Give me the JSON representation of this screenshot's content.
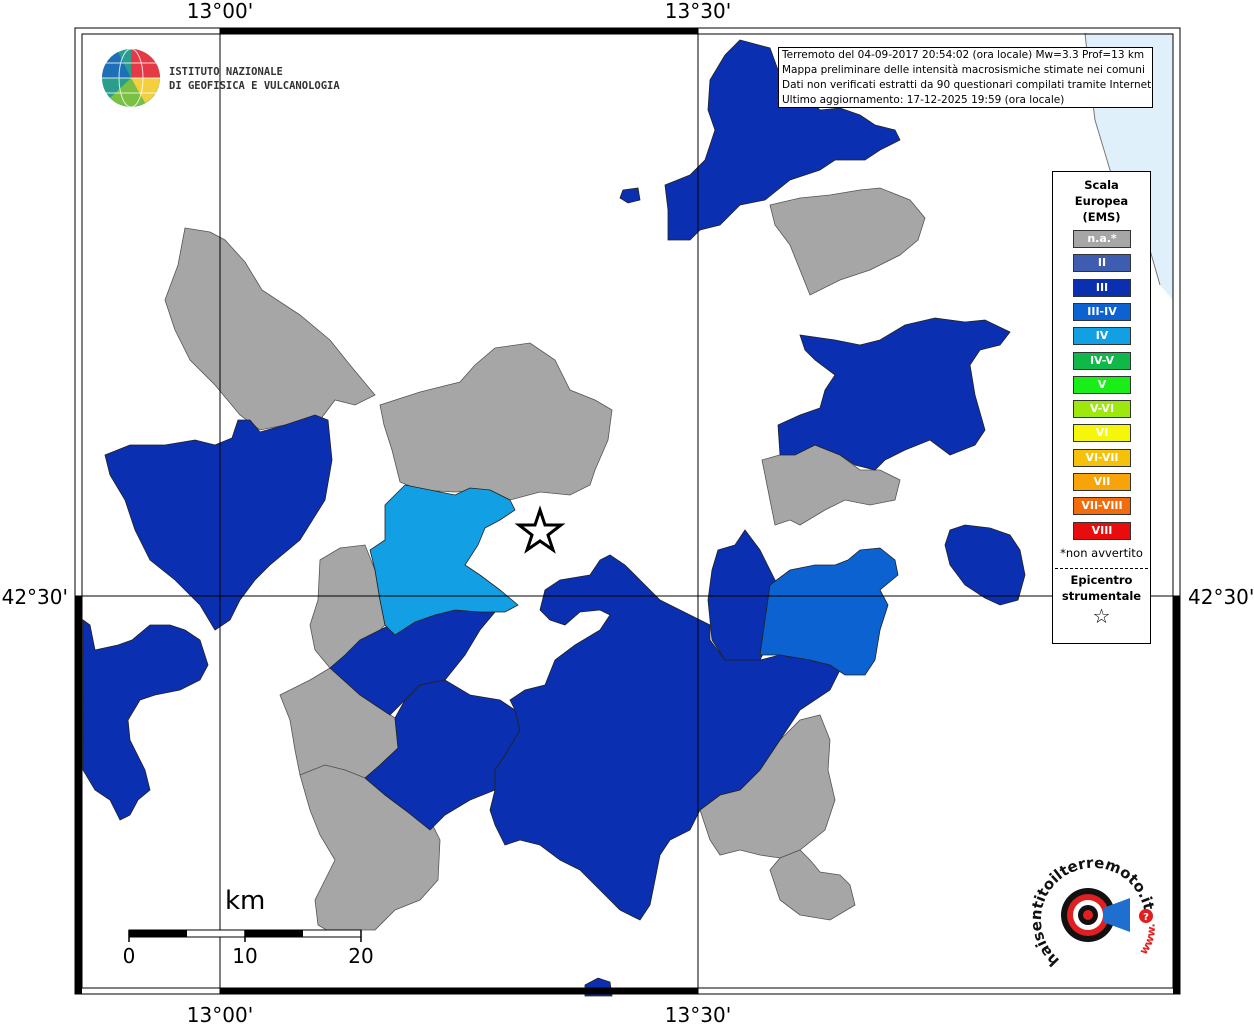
{
  "map": {
    "tick_labels": {
      "lon_top": [
        "13°00'",
        "13°30'"
      ],
      "lon_bottom": [
        "13°00'",
        "13°30'"
      ],
      "lat_left": "42°30'",
      "lat_right": "42°30'"
    }
  },
  "logo": {
    "line1": "ISTITUTO NAZIONALE",
    "line2": "DI GEOFISICA E VULCANOLOGIA"
  },
  "info": {
    "line1": "Terremoto del 04-09-2017 20:54:02 (ora locale) Mw=3.3 Prof=13 km",
    "line2": "Mappa preliminare delle intensità macrosismiche stimate nei comuni",
    "line3": "Dati non verificati estratti da 90 questionari compilati tramite Internet.",
    "line4": "Ultimo aggiornamento: 17-12-2025 19:59 (ora locale)"
  },
  "legend": {
    "title_lines": [
      "Scala",
      "Europea",
      "(EMS)"
    ],
    "items": [
      {
        "label": "n.a.*",
        "color": "#a6a6a6"
      },
      {
        "label": "II",
        "color": "#3f5db0"
      },
      {
        "label": "III",
        "color": "#0a2fb0"
      },
      {
        "label": "III-IV",
        "color": "#0b62d0"
      },
      {
        "label": "IV",
        "color": "#139fe3"
      },
      {
        "label": "IV-V",
        "color": "#10b84a"
      },
      {
        "label": "V",
        "color": "#19ee19"
      },
      {
        "label": "V-VI",
        "color": "#9de80f"
      },
      {
        "label": "VI",
        "color": "#f6f60a"
      },
      {
        "label": "VI-VII",
        "color": "#f6c10a"
      },
      {
        "label": "VII",
        "color": "#f6a40a"
      },
      {
        "label": "VII-VIII",
        "color": "#f26b0c"
      },
      {
        "label": "VIII",
        "color": "#e80c0c"
      }
    ],
    "note": "*non avvertito",
    "epicenter_lines": [
      "Epicentro",
      "strumentale"
    ],
    "epicenter_symbol": "☆"
  },
  "scalebar": {
    "unit": "km",
    "labels": [
      "0",
      "10",
      "20"
    ]
  },
  "badge": {
    "text_outer": "haisentitoilterremoto.it",
    "text_inner": "www.",
    "question_mark": "?"
  },
  "colors": {
    "na": "#a6a6a6",
    "III": "#0a2fb0",
    "III_IV": "#0b62d0",
    "IV": "#139fe3",
    "sea": "#e0f0fb"
  }
}
